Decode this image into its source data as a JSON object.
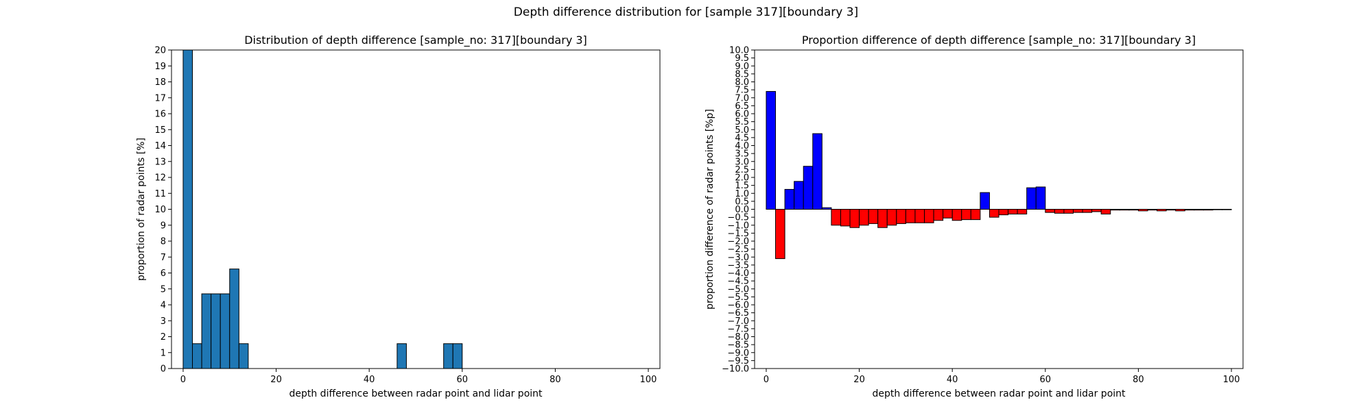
{
  "figure": {
    "suptitle": "Depth difference distribution for [sample 317][boundary 3]"
  },
  "chart_data": [
    {
      "type": "bar",
      "title": "Distribution of depth difference [sample_no: 317][boundary 3]",
      "xlabel": "depth difference between radar point and lidar point",
      "ylabel": "proportion of radar points [%]",
      "xlim": [
        -2.5,
        102.5
      ],
      "ylim": [
        0,
        20
      ],
      "xticks": [
        0,
        20,
        40,
        60,
        80,
        100
      ],
      "yticks": [
        0,
        1,
        2,
        3,
        4,
        5,
        6,
        7,
        8,
        9,
        10,
        11,
        12,
        13,
        14,
        15,
        16,
        17,
        18,
        19,
        20
      ],
      "bin_width": 2,
      "bins_start": [
        0,
        2,
        4,
        6,
        8,
        10,
        12,
        46,
        56,
        58
      ],
      "values": [
        20,
        1.56,
        4.69,
        4.69,
        4.69,
        6.25,
        1.56,
        1.56,
        1.56,
        1.56
      ],
      "bar_color": "#1f77b4",
      "edge_color": "#000000"
    },
    {
      "type": "bar",
      "title": "Proportion difference of depth difference [sample_no: 317][boundary 3]",
      "xlabel": "depth difference between radar point and lidar point",
      "ylabel": "proportion difference of radar points [%p]",
      "xlim": [
        -2.5,
        102.5
      ],
      "ylim": [
        -10,
        10
      ],
      "xticks": [
        0,
        20,
        40,
        60,
        80,
        100
      ],
      "yticks": [
        -10.0,
        -9.5,
        -9.0,
        -8.5,
        -8.0,
        -7.5,
        -7.0,
        -6.5,
        -6.0,
        -5.5,
        -5.0,
        -4.5,
        -4.0,
        -3.5,
        -3.0,
        -2.5,
        -2.0,
        -1.5,
        -1.0,
        -0.5,
        0.0,
        0.5,
        1.0,
        1.5,
        2.0,
        2.5,
        3.0,
        3.5,
        4.0,
        4.5,
        5.0,
        5.5,
        6.0,
        6.5,
        7.0,
        7.5,
        8.0,
        8.5,
        9.0,
        9.5,
        10.0
      ],
      "bin_width": 2,
      "bins_start": [
        0,
        2,
        4,
        6,
        8,
        10,
        12,
        14,
        16,
        18,
        20,
        22,
        24,
        26,
        28,
        30,
        32,
        34,
        36,
        38,
        40,
        42,
        44,
        46,
        48,
        50,
        52,
        54,
        56,
        58,
        60,
        62,
        64,
        66,
        68,
        70,
        72,
        74,
        76,
        78,
        80,
        82,
        84,
        86,
        88,
        90,
        92,
        94,
        96,
        98
      ],
      "values": [
        7.4,
        -3.1,
        1.25,
        1.75,
        2.7,
        4.75,
        0.1,
        -1.0,
        -1.05,
        -1.15,
        -1.0,
        -0.9,
        -1.15,
        -1.0,
        -0.9,
        -0.85,
        -0.85,
        -0.85,
        -0.7,
        -0.55,
        -0.7,
        -0.65,
        -0.65,
        1.05,
        -0.5,
        -0.35,
        -0.3,
        -0.3,
        1.35,
        1.4,
        -0.2,
        -0.25,
        -0.25,
        -0.2,
        -0.2,
        -0.15,
        -0.3,
        -0.05,
        -0.05,
        -0.05,
        -0.1,
        -0.05,
        -0.1,
        -0.05,
        -0.1,
        -0.05,
        -0.05,
        -0.05,
        -0.03,
        -0.03
      ],
      "positive_color": "#0000ff",
      "negative_color": "#ff0000",
      "edge_color": "#000000"
    }
  ]
}
